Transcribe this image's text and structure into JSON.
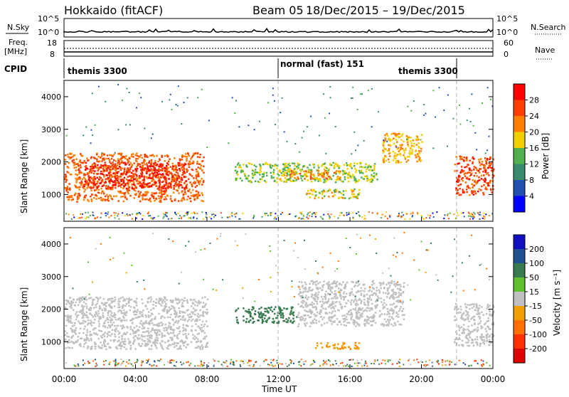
{
  "header": {
    "station": "Hokkaido (fitACF)",
    "beam": "Beam 05",
    "dates": "18/Dec/2015 – 19/Dec/2015"
  },
  "nsky_panel": {
    "left_label": "N.Sky",
    "right_label": "N.Search",
    "ytick_top": "10^5",
    "ytick_bottom": "10^0"
  },
  "freq_panel": {
    "left_label_1": "Freq.",
    "left_label_2": "[MHz]",
    "left_tick_top": "18",
    "left_tick_bottom": "8",
    "right_tick_top": "60",
    "right_tick_bottom": "0",
    "right_label": "Nave"
  },
  "cpid_panel": {
    "label": "CPID",
    "modes": [
      "themis 3300",
      "normal (fast) 151",
      "themis 3300"
    ]
  },
  "x_axis": {
    "ticks": [
      "00:00",
      "04:00",
      "08:00",
      "12:00",
      "16:00",
      "20:00",
      "00:00"
    ],
    "label": "Time UT"
  },
  "power_panel": {
    "ylabel": "Slant Range [km]",
    "yticks": [
      "1000",
      "2000",
      "3000",
      "4000"
    ],
    "colorbar_label": "Power [dB]",
    "colorbar_ticks": [
      "4",
      "8",
      "12",
      "16",
      "20",
      "24",
      "28"
    ],
    "colors": [
      "#0000ff",
      "#2050b0",
      "#3a8a70",
      "#50b050",
      "#f0d000",
      "#ff8000",
      "#ff4000",
      "#ff0000"
    ]
  },
  "velocity_panel": {
    "ylabel": "Slant Range [km]",
    "yticks": [
      "1000",
      "2000",
      "3000",
      "4000"
    ],
    "colorbar_label": "Velocity [m s⁻¹]",
    "colorbar_ticks": [
      "200",
      "100",
      "50",
      "15",
      "-15",
      "-50",
      "-100",
      "-200"
    ],
    "colors": [
      "#1010c0",
      "#205090",
      "#3a7a50",
      "#60c030",
      "#c0c0c0",
      "#f0a000",
      "#ff7000",
      "#ff3000",
      "#e00000"
    ]
  },
  "chart_data": {
    "type": "heatmap",
    "x_range_hours": [
      0,
      24
    ],
    "y_range_km": [
      180,
      4500
    ],
    "power_regions": [
      {
        "t0": 0.0,
        "t1": 7.8,
        "r0": 800,
        "r1": 2300,
        "power_db": 26
      },
      {
        "t0": 1.0,
        "t1": 6.8,
        "r0": 1200,
        "r1": 2000,
        "power_db": 30
      },
      {
        "t0": 9.5,
        "t1": 17.5,
        "r0": 1400,
        "r1": 2000,
        "power_db": 18
      },
      {
        "t0": 12.0,
        "t1": 15.5,
        "r0": 1500,
        "r1": 1800,
        "power_db": 24
      },
      {
        "t0": 13.5,
        "t1": 16.5,
        "r0": 900,
        "r1": 1200,
        "power_db": 20
      },
      {
        "t0": 17.8,
        "t1": 20.0,
        "r0": 2000,
        "r1": 2900,
        "power_db": 22
      },
      {
        "t0": 21.8,
        "t1": 24.0,
        "r0": 1000,
        "r1": 2200,
        "power_db": 28
      }
    ],
    "velocity_regions": [
      {
        "t0": 0.0,
        "t1": 8.0,
        "r0": 800,
        "r1": 2400,
        "velocity": 0
      },
      {
        "t0": 9.5,
        "t1": 13.0,
        "r0": 1600,
        "r1": 2100,
        "velocity": 40
      },
      {
        "t0": 13.0,
        "t1": 19.0,
        "r0": 1500,
        "r1": 2900,
        "velocity": 0
      },
      {
        "t0": 14.0,
        "t1": 16.5,
        "r0": 800,
        "r1": 1000,
        "velocity": -30
      },
      {
        "t0": 21.8,
        "t1": 24.0,
        "r0": 900,
        "r1": 2200,
        "velocity": 0
      }
    ],
    "cpid_boundaries_hours": [
      12.0,
      21.8
    ],
    "frequency_mhz": 10
  }
}
